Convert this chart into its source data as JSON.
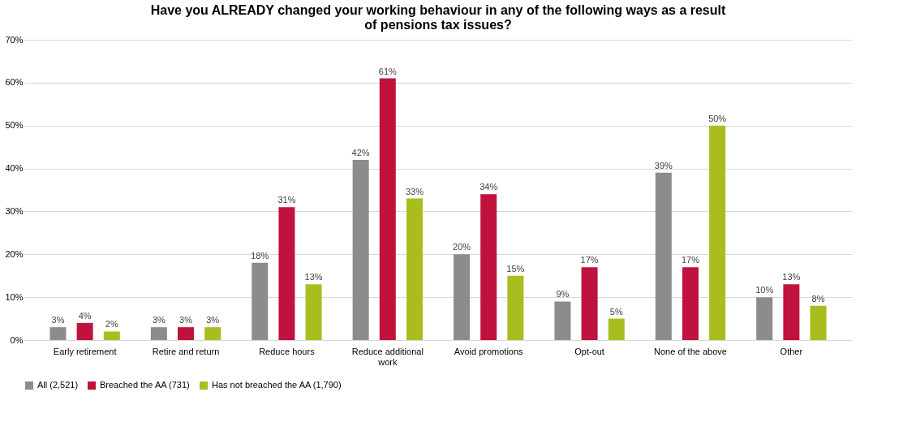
{
  "chart_data": {
    "type": "bar",
    "title": "Have you ALREADY changed your working behaviour in any of the following ways as a result of pensions tax issues?",
    "categories": [
      "Early retirement",
      "Retire and return",
      "Reduce hours",
      "Reduce additional work",
      "Avoid promotions",
      "Opt-out",
      "None of the above",
      "Other"
    ],
    "series": [
      {
        "name": "All (2,521)",
        "color": "#8c8c8c",
        "values": [
          3,
          3,
          18,
          42,
          20,
          9,
          39,
          10
        ],
        "value_labels": [
          "3%",
          "3%",
          "18%",
          "42%",
          "20%",
          "9%",
          "39%",
          "10%"
        ]
      },
      {
        "name": "Breached the AA (731)",
        "color": "#c0123c",
        "values": [
          4,
          3,
          31,
          61,
          34,
          17,
          17,
          13
        ],
        "value_labels": [
          "4%",
          "3%",
          "31%",
          "61%",
          "34%",
          "17%",
          "17%",
          "13%"
        ]
      },
      {
        "name": "Has not breached the AA (1,790)",
        "color": "#a9bd1f",
        "values": [
          2,
          3,
          13,
          33,
          15,
          5,
          50,
          8
        ],
        "value_labels": [
          "2%",
          "3%",
          "13%",
          "33%",
          "15%",
          "5%",
          "50%",
          "8%"
        ]
      }
    ],
    "ylim": [
      0,
      70
    ],
    "yticks": [
      {
        "value": 0,
        "label": "0%"
      },
      {
        "value": 10,
        "label": "10%"
      },
      {
        "value": 20,
        "label": "20%"
      },
      {
        "value": 30,
        "label": "30%"
      },
      {
        "value": 40,
        "label": "40%"
      },
      {
        "value": 50,
        "label": "50%"
      },
      {
        "value": 60,
        "label": "60%"
      },
      {
        "value": 70,
        "label": "70%"
      }
    ],
    "grid": "y",
    "legend": "bottom"
  }
}
